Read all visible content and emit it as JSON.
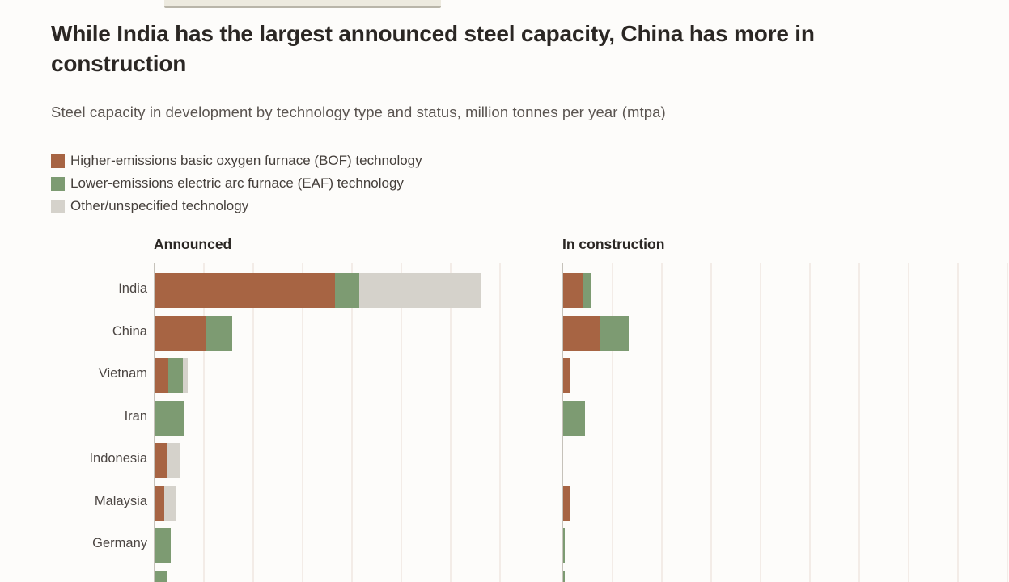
{
  "page": {
    "background_color": "#fdfcfa"
  },
  "header": {
    "title": "While India has the largest announced steel capacity, China has more in construction",
    "subtitle": "Steel capacity in development by technology type and status, million tonnes per year (mtpa)"
  },
  "chart_data": {
    "type": "bar",
    "horizontal": true,
    "stacked": true,
    "unit": "mtpa",
    "grid": true,
    "legend_position": "top-left",
    "axis_note": "x-axis tick labels are cut off at the bottom edge of the screenshot; values estimated from unlabeled gridlines assuming 20 mtpa per gridline division",
    "gridline_interval": 20,
    "panel_xlim": [
      0,
      155
    ],
    "legend": [
      {
        "key": "bof",
        "label": "Higher-emissions basic oxygen furnace (BOF) technology",
        "color": "#a76443"
      },
      {
        "key": "eaf",
        "label": "Lower-emissions electric arc furnace (EAF) technology",
        "color": "#7d9b72"
      },
      {
        "key": "other",
        "label": "Other/unspecified technology",
        "color": "#d5d2cb"
      }
    ],
    "categories": [
      "India",
      "China",
      "Vietnam",
      "Iran",
      "Indonesia",
      "Malaysia",
      "Germany",
      ""
    ],
    "eighth_row_note": "an eighth bar row is partially visible at the bottom edge; its label is cut off and not readable",
    "panels": [
      {
        "label": "Announced",
        "series": [
          {
            "name": "bof",
            "values": [
              73,
              21,
              5.5,
              0,
              5,
              4,
              0,
              0
            ]
          },
          {
            "name": "eaf",
            "values": [
              10,
              10.5,
              6,
              12,
              0,
              0,
              6.5,
              5
            ]
          },
          {
            "name": "other",
            "values": [
              49,
              0,
              2,
              0,
              5.5,
              5,
              0,
              0
            ]
          }
        ]
      },
      {
        "label": "In construction",
        "series": [
          {
            "name": "bof",
            "values": [
              8,
              15,
              2.5,
              0,
              0,
              2.5,
              0,
              0
            ]
          },
          {
            "name": "eaf",
            "values": [
              3.5,
              11.5,
              0,
              9,
              0,
              0,
              0.5,
              0.5
            ]
          },
          {
            "name": "other",
            "values": [
              0,
              0,
              0,
              0,
              0,
              0,
              0,
              0
            ]
          }
        ]
      }
    ]
  }
}
